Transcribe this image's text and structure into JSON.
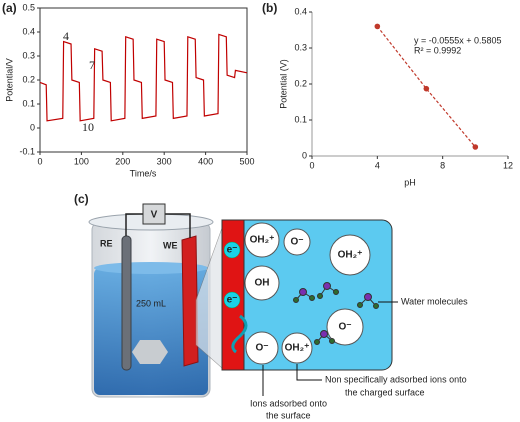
{
  "panel_labels": [
    "(a)",
    "(b)",
    "(c)"
  ],
  "chart_data": [
    {
      "type": "line",
      "xlabel": "Time/s",
      "ylabel": "Potential/V",
      "xlim": [
        0,
        500
      ],
      "ylim": [
        -0.1,
        0.5
      ],
      "xticks": [
        0,
        100,
        200,
        300,
        400,
        500
      ],
      "yticks": [
        -0.1,
        0,
        0.1,
        0.2,
        0.3,
        0.4,
        0.5
      ],
      "x": [
        0,
        15,
        17,
        55,
        57,
        75,
        77,
        95,
        97,
        130,
        132,
        150,
        152,
        170,
        172,
        205,
        207,
        225,
        227,
        245,
        247,
        280,
        282,
        300,
        302,
        320,
        322,
        355,
        357,
        375,
        377,
        395,
        397,
        430,
        432,
        450,
        452,
        470,
        472,
        500
      ],
      "series": [
        {
          "color": "#c00000",
          "values": [
            0.19,
            0.18,
            0.03,
            0.04,
            0.36,
            0.35,
            0.2,
            0.19,
            0.03,
            0.04,
            0.33,
            0.32,
            0.2,
            0.19,
            0.03,
            0.04,
            0.38,
            0.37,
            0.2,
            0.19,
            0.04,
            0.05,
            0.37,
            0.36,
            0.2,
            0.19,
            0.04,
            0.05,
            0.38,
            0.37,
            0.21,
            0.2,
            0.05,
            0.06,
            0.39,
            0.38,
            0.22,
            0.21,
            0.24,
            0.23
          ]
        }
      ],
      "annotations": [
        "4",
        "7",
        "10"
      ]
    },
    {
      "type": "scatter",
      "xlabel": "pH",
      "ylabel": "Potential (V)",
      "xlim": [
        0,
        12
      ],
      "ylim": [
        0,
        0.4
      ],
      "xticks": [
        0,
        4,
        8,
        12
      ],
      "yticks": [
        0,
        0.1,
        0.2,
        0.3,
        0.4
      ],
      "x": [
        4,
        7,
        10
      ],
      "series": [
        {
          "color": "#c0392b",
          "values": [
            0.36,
            0.187,
            0.025
          ]
        }
      ],
      "trendline": true,
      "annotations": [
        "y = -0.0555x + 0.5805",
        "R² = 0.9992"
      ]
    }
  ],
  "diagram": {
    "meter": "V",
    "reference_electrode": "RE",
    "working_electrode": "WE",
    "beaker_volume": "250 mL",
    "electrons": [
      "e⁻",
      "e⁻"
    ],
    "ions": [
      "OH₂⁺",
      "O⁻",
      "OH₂⁺",
      "OH",
      "O⁻",
      "O⁻",
      "OH₂⁺"
    ],
    "callouts": {
      "water": "Water molecules",
      "non_specific": [
        "Non specifically adsorbed ions onto",
        "the charged surface"
      ],
      "adsorbed": [
        "Ions adsorbed onto",
        "the surface"
      ]
    }
  }
}
